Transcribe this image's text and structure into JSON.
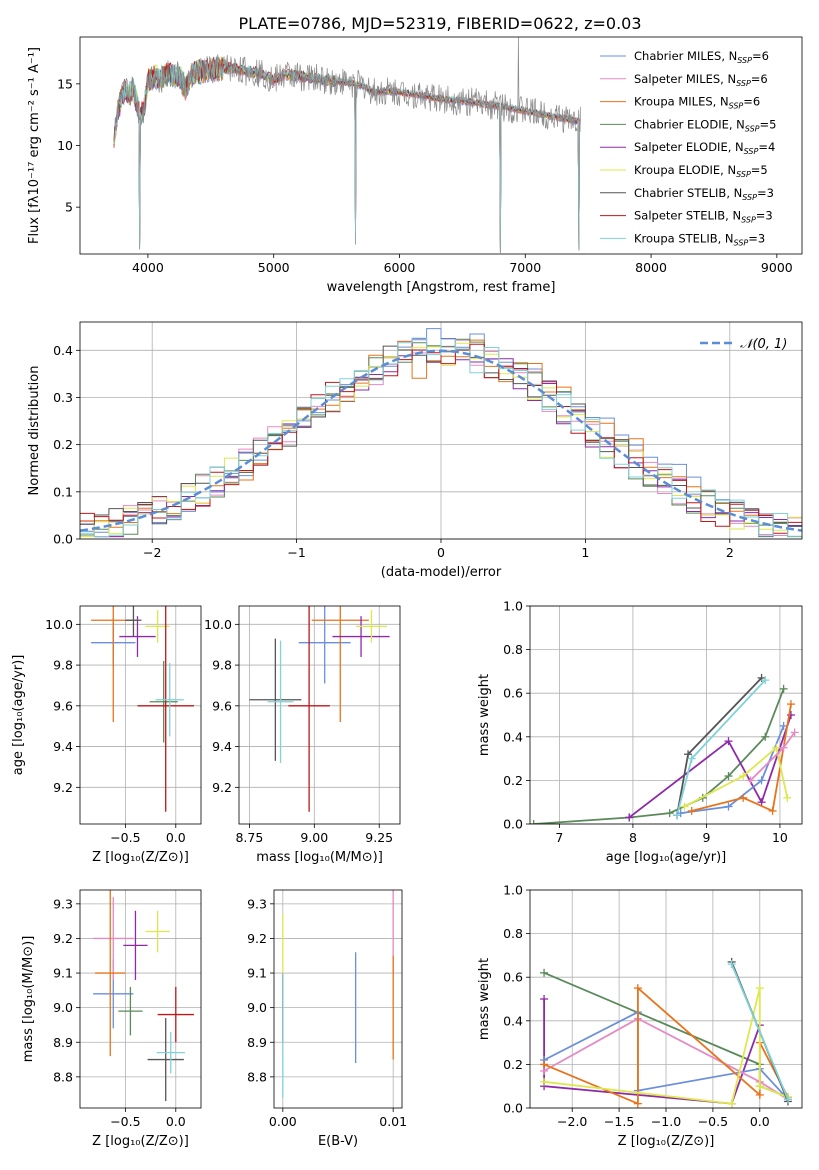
{
  "figure": {
    "title": "PLATE=0786, MJD=52319, FIBERID=0622, z=0.03"
  },
  "colors": {
    "Chabrier MILES": "#6a8fdc",
    "Salpeter MILES": "#e68ac4",
    "Kroupa MILES": "#e8731a",
    "Chabrier ELODIE": "#5a8a5a",
    "Salpeter ELODIE": "#8e2aa8",
    "Kroupa ELODIE": "#dde84c",
    "Chabrier STELIB": "#555555",
    "Salpeter STELIB": "#c0171a",
    "Kroupa STELIB": "#7fd2d8"
  },
  "chart_data": [
    {
      "id": "spectrum",
      "type": "line",
      "title": "PLATE=0786, MJD=52319, FIBERID=0622, z=0.03",
      "xlabel": "wavelength [Angstrom, rest frame]",
      "ylabel": "Flux [fλ10⁻¹⁷ erg cm⁻² s⁻¹ A⁻¹]",
      "xlim": [
        3460,
        9200
      ],
      "ylim": [
        1.2,
        18.8
      ],
      "xticks": [
        "4000",
        "5000",
        "6000",
        "7000",
        "8000",
        "9000"
      ],
      "yticks": [
        "5",
        "10",
        "15"
      ],
      "xtick_values": [
        4000,
        5000,
        6000,
        7000,
        8000,
        9000
      ],
      "ytick_values": [
        5,
        10,
        15
      ],
      "legend_position": "top-right",
      "legend": [
        {
          "label": "Chabrier MILES, N",
          "sub": "SSP",
          "suffix": "=6"
        },
        {
          "label": "Salpeter MILES, N",
          "sub": "SSP",
          "suffix": "=6"
        },
        {
          "label": "Kroupa MILES, N",
          "sub": "SSP",
          "suffix": "=6"
        },
        {
          "label": "Chabrier ELODIE, N",
          "sub": "SSP",
          "suffix": "=5"
        },
        {
          "label": "Salpeter ELODIE, N",
          "sub": "SSP",
          "suffix": "=4"
        },
        {
          "label": "Kroupa ELODIE, N",
          "sub": "SSP",
          "suffix": "=5"
        },
        {
          "label": "Chabrier STELIB, N",
          "sub": "SSP",
          "suffix": "=3"
        },
        {
          "label": "Salpeter STELIB, N",
          "sub": "SSP",
          "suffix": "=3"
        },
        {
          "label": "Kroupa STELIB, N",
          "sub": "SSP",
          "suffix": "=3"
        }
      ],
      "data_trace": {
        "x": [
          3730,
          3760,
          3790,
          3820,
          3850,
          3880,
          3910,
          3940,
          3970,
          4000,
          4050,
          4100,
          4150,
          4200,
          4250,
          4300,
          4350,
          4400,
          4500,
          4600,
          4700,
          4800,
          4900,
          5000,
          5100,
          5200,
          5300,
          5400,
          5500,
          5600,
          5700,
          5800,
          5900,
          6000,
          6100,
          6200,
          6300,
          6400,
          6500,
          6600,
          6700,
          6800,
          6900,
          7000,
          7100,
          7200,
          7300,
          7400
        ],
        "y": [
          10.5,
          12.8,
          13.8,
          14.5,
          14.2,
          14.6,
          13.5,
          12.2,
          13.0,
          15.3,
          15.6,
          15.4,
          15.8,
          15.7,
          15.6,
          14.6,
          15.8,
          16.0,
          16.1,
          16.3,
          16.2,
          16.0,
          15.9,
          15.3,
          15.8,
          15.6,
          15.5,
          15.3,
          15.2,
          15.1,
          14.9,
          14.3,
          14.4,
          14.3,
          14.2,
          14.0,
          13.8,
          13.7,
          13.6,
          13.5,
          13.3,
          13.2,
          13.0,
          12.8,
          12.6,
          12.4,
          12.2,
          12.0
        ]
      },
      "spikes": [
        {
          "x": 3935,
          "y": 1.6
        },
        {
          "x": 5650,
          "y": 2.0
        },
        {
          "x": 6800,
          "y": 1.3
        },
        {
          "x": 7425,
          "y": 1.5
        }
      ]
    },
    {
      "id": "residuals",
      "type": "bar",
      "xlabel": "(data-model)/error",
      "ylabel": "Normed distribution",
      "xlim": [
        -2.5,
        2.5
      ],
      "ylim": [
        0,
        0.46
      ],
      "xticks": [
        "−2",
        "−1",
        "0",
        "1",
        "2"
      ],
      "yticks": [
        "0.0",
        "0.1",
        "0.2",
        "0.3",
        "0.4"
      ],
      "xtick_values": [
        -2,
        -1,
        0,
        1,
        2
      ],
      "ytick_values": [
        0,
        0.1,
        0.2,
        0.3,
        0.4
      ],
      "bin_width": 0.1,
      "legend_position": "top-right",
      "legend": [
        {
          "label": "𝒩(0, 1)"
        }
      ],
      "series": [
        {
          "name": "Chabrier MILES",
          "values": [
            0.02,
            0.03,
            0.05,
            0.05,
            0.04,
            0.06,
            0.09,
            0.1,
            0.13,
            0.17,
            0.2,
            0.24,
            0.26,
            0.29,
            0.32,
            0.35,
            0.37,
            0.4,
            0.42,
            0.44,
            0.41,
            0.43,
            0.39,
            0.37,
            0.36,
            0.34,
            0.31,
            0.29,
            0.26,
            0.23,
            0.2,
            0.18,
            0.15,
            0.13,
            0.11,
            0.09,
            0.07,
            0.05,
            0.04,
            0.03
          ]
        },
        {
          "name": "Kroupa MILES",
          "values": [
            0.03,
            0.03,
            0.04,
            0.06,
            0.05,
            0.07,
            0.08,
            0.11,
            0.12,
            0.16,
            0.21,
            0.23,
            0.27,
            0.28,
            0.3,
            0.33,
            0.38,
            0.41,
            0.35,
            0.38,
            0.39,
            0.43,
            0.37,
            0.34,
            0.38,
            0.32,
            0.33,
            0.28,
            0.25,
            0.22,
            0.21,
            0.16,
            0.14,
            0.12,
            0.1,
            0.08,
            0.06,
            0.05,
            0.03,
            0.02
          ]
        }
      ],
      "normal_curve": {
        "mean": 0,
        "std": 1,
        "label": "𝒩(0, 1)"
      }
    },
    {
      "id": "age-vs-Z",
      "type": "scatter",
      "xlabel": "Z [log₁₀(Z/Z⊙)]",
      "ylabel": "age  [log₁₀(age/yr)]",
      "xlim": [
        -0.95,
        0.25
      ],
      "ylim": [
        9.02,
        10.09
      ],
      "xticks": [
        "−0.5",
        "0.0"
      ],
      "yticks": [
        "9.2",
        "9.4",
        "9.6",
        "9.8",
        "10.0"
      ],
      "xtick_values": [
        -0.5,
        0
      ],
      "ytick_values": [
        9.2,
        9.4,
        9.6,
        9.8,
        10.0
      ],
      "points": [
        {
          "model": "Chabrier MILES",
          "x": -0.62,
          "y": 9.91,
          "xerr": 0.22,
          "yerr": 0.12
        },
        {
          "model": "Kroupa MILES",
          "x": -0.62,
          "y": 10.02,
          "xerr": 0.22,
          "yerr": 0.5
        },
        {
          "model": "Salpeter ELODIE",
          "x": -0.38,
          "y": 9.94,
          "xerr": 0.18,
          "yerr": 0.1
        },
        {
          "model": "Kroupa ELODIE",
          "x": -0.18,
          "y": 9.99,
          "xerr": 0.12,
          "yerr": 0.08
        },
        {
          "model": "Chabrier STELIB",
          "x": -0.42,
          "y": 10.02,
          "xerr": 0.08,
          "yerr": 0.08
        },
        {
          "model": "Chabrier ELODIE",
          "x": -0.12,
          "y": 9.62,
          "xerr": 0.14,
          "yerr": 0.2
        },
        {
          "model": "Salpeter STELIB",
          "x": -0.1,
          "y": 9.6,
          "xerr": 0.28,
          "yerr": 0.52
        },
        {
          "model": "Kroupa STELIB",
          "x": -0.06,
          "y": 9.63,
          "xerr": 0.14,
          "yerr": 0.18
        }
      ]
    },
    {
      "id": "age-vs-mass",
      "type": "scatter",
      "xlabel": "mass [log₁₀(M/M⊙)]",
      "ylabel": "",
      "xlim": [
        8.71,
        9.33
      ],
      "ylim": [
        9.02,
        10.09
      ],
      "xticks": [
        "8.75",
        "9.00",
        "9.25"
      ],
      "yticks": [
        "9.2",
        "9.4",
        "9.6",
        "9.8",
        "10.0"
      ],
      "xtick_values": [
        8.75,
        9.0,
        9.25
      ],
      "ytick_values": [
        9.2,
        9.4,
        9.6,
        9.8,
        10.0
      ],
      "points": [
        {
          "model": "Chabrier MILES",
          "x": 9.04,
          "y": 9.91,
          "xerr": 0.1,
          "yerr": 0.2
        },
        {
          "model": "Kroupa MILES",
          "x": 9.1,
          "y": 10.02,
          "xerr": 0.11,
          "yerr": 0.5
        },
        {
          "model": "Salpeter ELODIE",
          "x": 9.18,
          "y": 9.94,
          "xerr": 0.11,
          "yerr": 0.1
        },
        {
          "model": "Kroupa ELODIE",
          "x": 9.22,
          "y": 9.99,
          "xerr": 0.06,
          "yerr": 0.08
        },
        {
          "model": "Chabrier STELIB",
          "x": 8.85,
          "y": 9.63,
          "xerr": 0.1,
          "yerr": 0.3
        },
        {
          "model": "Salpeter STELIB",
          "x": 8.98,
          "y": 9.6,
          "xerr": 0.08,
          "yerr": 0.52
        },
        {
          "model": "Kroupa STELIB",
          "x": 8.87,
          "y": 9.62,
          "xerr": 0.05,
          "yerr": 0.3
        }
      ]
    },
    {
      "id": "massweight-vs-age",
      "type": "line",
      "xlabel": "age  [log₁₀(age/yr)]",
      "ylabel": "mass weight",
      "xlim": [
        6.6,
        10.3
      ],
      "ylim": [
        0,
        1.0
      ],
      "xticks": [
        "7",
        "8",
        "9",
        "10"
      ],
      "yticks": [
        "0.0",
        "0.2",
        "0.4",
        "0.6",
        "0.8",
        "1.0"
      ],
      "xtick_values": [
        7,
        8,
        9,
        10
      ],
      "ytick_values": [
        0,
        0.2,
        0.4,
        0.6,
        0.8,
        1.0
      ],
      "series": [
        {
          "model": "Chabrier ELODIE",
          "x": [
            6.65,
            7.95,
            8.5,
            8.95,
            9.3,
            9.8,
            10.05
          ],
          "y": [
            0.0,
            0.03,
            0.05,
            0.12,
            0.22,
            0.4,
            0.62
          ]
        },
        {
          "model": "Salpeter ELODIE",
          "x": [
            7.95,
            9.3,
            9.75,
            10.15
          ],
          "y": [
            0.03,
            0.38,
            0.1,
            0.5
          ]
        },
        {
          "model": "Chabrier STELIB",
          "x": [
            8.6,
            8.75,
            9.75
          ],
          "y": [
            0.04,
            0.32,
            0.67
          ]
        },
        {
          "model": "Kroupa STELIB",
          "x": [
            8.6,
            8.8,
            9.8
          ],
          "y": [
            0.04,
            0.3,
            0.66
          ]
        },
        {
          "model": "Chabrier MILES",
          "x": [
            8.65,
            9.3,
            9.75,
            10.05
          ],
          "y": [
            0.05,
            0.08,
            0.2,
            0.45
          ]
        },
        {
          "model": "Kroupa MILES",
          "x": [
            8.8,
            9.5,
            9.9,
            10.15
          ],
          "y": [
            0.06,
            0.12,
            0.06,
            0.55
          ]
        },
        {
          "model": "Kroupa ELODIE",
          "x": [
            8.7,
            9.5,
            9.95,
            10.1
          ],
          "y": [
            0.08,
            0.22,
            0.35,
            0.12
          ]
        },
        {
          "model": "Salpeter MILES",
          "x": [
            9.6,
            10.05,
            10.2
          ],
          "y": [
            0.2,
            0.35,
            0.42
          ]
        }
      ]
    },
    {
      "id": "mass-vs-Z",
      "type": "scatter",
      "xlabel": "Z [log₁₀(Z/Z⊙)]",
      "ylabel": "mass [log₁₀(M/M⊙)]",
      "xlim": [
        -0.95,
        0.25
      ],
      "ylim": [
        8.71,
        9.34
      ],
      "xticks": [
        "−0.5",
        "0.0"
      ],
      "yticks": [
        "8.8",
        "8.9",
        "9.0",
        "9.1",
        "9.2",
        "9.3"
      ],
      "xtick_values": [
        -0.5,
        0
      ],
      "ytick_values": [
        8.8,
        8.9,
        9.0,
        9.1,
        9.2,
        9.3
      ],
      "points": [
        {
          "model": "Chabrier MILES",
          "x": -0.62,
          "y": 9.04,
          "xerr": 0.2,
          "yerr": 0.1
        },
        {
          "model": "Salpeter MILES",
          "x": -0.62,
          "y": 9.2,
          "xerr": 0.2,
          "yerr": 0.12
        },
        {
          "model": "Kroupa MILES",
          "x": -0.65,
          "y": 9.1,
          "xerr": 0.15,
          "yerr": 0.24
        },
        {
          "model": "Chabrier ELODIE",
          "x": -0.45,
          "y": 8.99,
          "xerr": 0.12,
          "yerr": 0.07
        },
        {
          "model": "Salpeter ELODIE",
          "x": -0.4,
          "y": 9.18,
          "xerr": 0.12,
          "yerr": 0.1
        },
        {
          "model": "Kroupa ELODIE",
          "x": -0.18,
          "y": 9.22,
          "xerr": 0.12,
          "yerr": 0.06
        },
        {
          "model": "Chabrier STELIB",
          "x": -0.1,
          "y": 8.85,
          "xerr": 0.18,
          "yerr": 0.12
        },
        {
          "model": "Salpeter STELIB",
          "x": 0.0,
          "y": 8.98,
          "xerr": 0.18,
          "yerr": 0.08
        },
        {
          "model": "Kroupa STELIB",
          "x": -0.05,
          "y": 8.87,
          "xerr": 0.14,
          "yerr": 0.06
        }
      ]
    },
    {
      "id": "mass-vs-EBV",
      "type": "scatter",
      "xlabel": "E(B-V)",
      "ylabel": "",
      "xlim": [
        -0.0008,
        0.0108
      ],
      "ylim": [
        8.71,
        9.34
      ],
      "xticks": [
        "0.00",
        "0.01"
      ],
      "yticks": [
        "8.8",
        "8.9",
        "9.0",
        "9.1",
        "9.2",
        "9.3"
      ],
      "xtick_values": [
        0,
        0.01
      ],
      "ytick_values": [
        8.8,
        8.9,
        9.0,
        9.1,
        9.2,
        9.3
      ],
      "points": [
        {
          "model": "Kroupa ELODIE",
          "x": 0.0,
          "y": 9.15,
          "yerr": 0.12
        },
        {
          "model": "Salpeter STELIB",
          "x": 0.0,
          "y": 9.0,
          "yerr": 0.1
        },
        {
          "model": "Kroupa STELIB",
          "x": 0.0,
          "y": 8.92,
          "yerr": 0.18
        },
        {
          "model": "Chabrier MILES",
          "x": 0.0066,
          "y": 9.0,
          "yerr": 0.16
        },
        {
          "model": "Salpeter MILES",
          "x": 0.01,
          "y": 9.22,
          "yerr": 0.12
        },
        {
          "model": "Kroupa MILES",
          "x": 0.01,
          "y": 9.0,
          "yerr": 0.15
        }
      ]
    },
    {
      "id": "massweight-vs-Z",
      "type": "line",
      "xlabel": "Z [log₁₀(Z/Z⊙)]",
      "ylabel": "mass weight",
      "xlim": [
        -2.45,
        0.45
      ],
      "ylim": [
        0,
        1.0
      ],
      "xticks": [
        "−2.0",
        "−1.5",
        "−1.0",
        "−0.5",
        "0.0"
      ],
      "yticks": [
        "0.0",
        "0.2",
        "0.4",
        "0.6",
        "0.8",
        "1.0"
      ],
      "xtick_values": [
        -2.0,
        -1.5,
        -1.0,
        -0.5,
        0.0
      ],
      "ytick_values": [
        0,
        0.2,
        0.4,
        0.6,
        0.8,
        1.0
      ],
      "series": [
        {
          "model": "Chabrier ELODIE",
          "x": [
            -2.3,
            0.0,
            0.0,
            0.3
          ],
          "y": [
            0.62,
            0.2,
            0.1,
            0.05
          ]
        },
        {
          "model": "Salpeter ELODIE",
          "x": [
            -2.3,
            -2.3,
            -0.3,
            0.0
          ],
          "y": [
            0.5,
            0.1,
            0.02,
            0.38
          ]
        },
        {
          "model": "Chabrier MILES",
          "x": [
            -2.3,
            -1.3,
            -1.3,
            0.0,
            0.3
          ],
          "y": [
            0.22,
            0.44,
            0.08,
            0.18,
            0.04
          ]
        },
        {
          "model": "Salpeter MILES",
          "x": [
            -2.3,
            -1.3,
            0.0,
            0.3
          ],
          "y": [
            0.17,
            0.41,
            0.12,
            0.04
          ]
        },
        {
          "model": "Kroupa MILES",
          "x": [
            -2.3,
            -1.3,
            -1.3,
            0.0,
            0.0,
            0.3
          ],
          "y": [
            0.2,
            0.02,
            0.55,
            0.06,
            0.3,
            0.05
          ]
        },
        {
          "model": "Kroupa ELODIE",
          "x": [
            -2.3,
            -0.3,
            0.0,
            0.0,
            0.3
          ],
          "y": [
            0.12,
            0.02,
            0.55,
            0.1,
            0.05
          ]
        },
        {
          "model": "Chabrier STELIB",
          "x": [
            -0.3,
            0.3
          ],
          "y": [
            0.67,
            0.03
          ]
        },
        {
          "model": "Kroupa STELIB",
          "x": [
            -0.3,
            0.3
          ],
          "y": [
            0.66,
            0.04
          ]
        }
      ]
    }
  ]
}
